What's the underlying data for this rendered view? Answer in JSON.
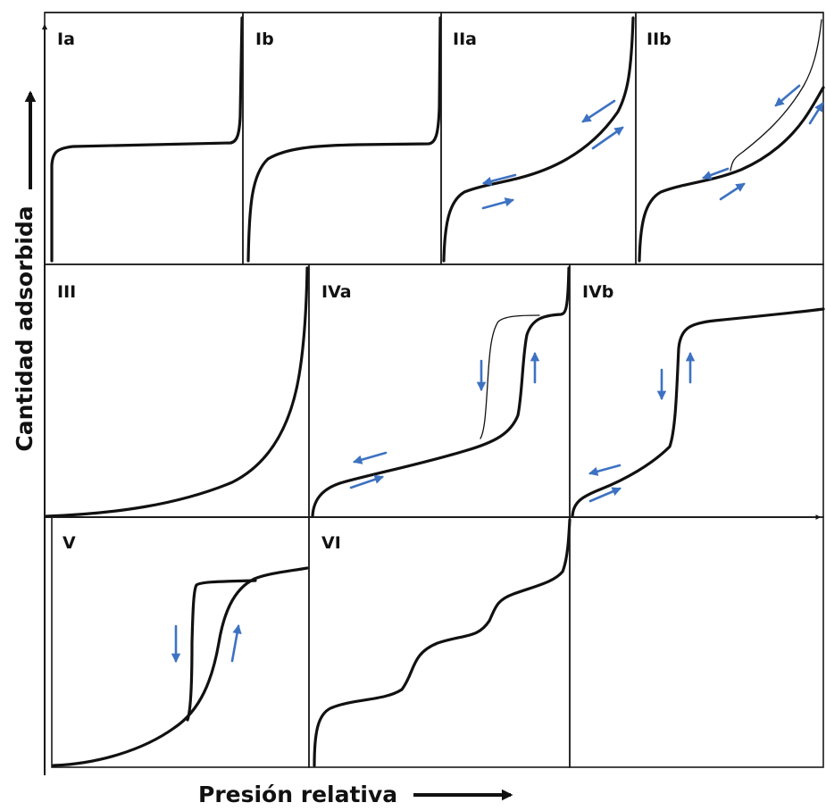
{
  "figure": {
    "y_axis_label": "Cantidad adsorbida",
    "x_axis_label": "Presión relativa",
    "arrow_color": "#3d72c2",
    "curve_color": "#111111"
  },
  "panels": [
    {
      "id": "Ia",
      "label": "Ia"
    },
    {
      "id": "Ib",
      "label": "Ib"
    },
    {
      "id": "IIa",
      "label": "IIa"
    },
    {
      "id": "IIb",
      "label": "IIb"
    },
    {
      "id": "III",
      "label": "III"
    },
    {
      "id": "IVa",
      "label": "IVa"
    },
    {
      "id": "IVb",
      "label": "IVb"
    },
    {
      "id": "V",
      "label": "V"
    },
    {
      "id": "VI",
      "label": "VI"
    }
  ]
}
